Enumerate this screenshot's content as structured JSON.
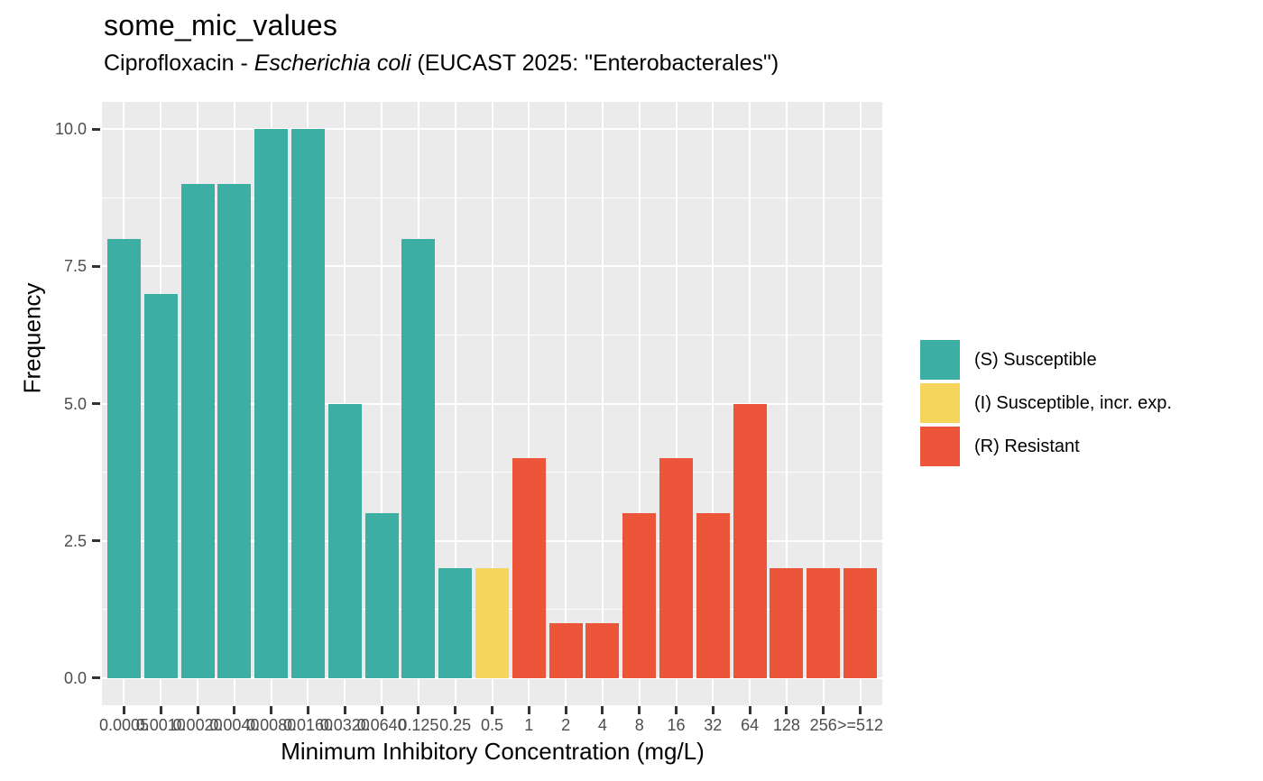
{
  "title": "some_mic_values",
  "subtitle": {
    "part1": "Ciprofloxacin - ",
    "part2_italic": "Escherichia coli",
    "part3": " (EUCAST 2025: \"Enterobacterales\")"
  },
  "axes": {
    "x_title": "Minimum Inhibitory Concentration (mg/L)",
    "y_title": "Frequency",
    "y_tick_labels": [
      "0.0",
      "2.5",
      "5.0",
      "7.5",
      "10.0"
    ],
    "y_tick_values": [
      0,
      2.5,
      5,
      7.5,
      10
    ],
    "y_minor_values": [
      1.25,
      3.75,
      6.25,
      8.75
    ]
  },
  "legend": {
    "items": [
      {
        "key": "S",
        "label": "(S) Susceptible",
        "color": "#3CAEA3"
      },
      {
        "key": "I",
        "label": "(I) Susceptible, incr. exp.",
        "color": "#F6D55C"
      },
      {
        "key": "R",
        "label": "(R) Resistant",
        "color": "#ED553B"
      }
    ]
  },
  "colors": {
    "panel_background": "#EBEBEB",
    "gridline": "#FFFFFF",
    "tick_label": "#4D4D4D",
    "tick_mark": "#333333",
    "text": "#000000",
    "S": "#3CAEA3",
    "I": "#F6D55C",
    "R": "#ED553B"
  },
  "chart_data": {
    "type": "bar",
    "title": "some_mic_values",
    "subtitle": "Ciprofloxacin - Escherichia coli (EUCAST 2025: \"Enterobacterales\")",
    "xlabel": "Minimum Inhibitory Concentration (mg/L)",
    "ylabel": "Frequency",
    "ylim": [
      0,
      10
    ],
    "y_major_breaks": [
      0,
      2.5,
      5,
      7.5,
      10
    ],
    "grid": true,
    "legend_position": "right",
    "categories": [
      "0.0005",
      "0.0010",
      "0.0020",
      "0.0040",
      "0.0080",
      "0.0160",
      "0.0320",
      "0.0640",
      "0.125",
      "0.25",
      "0.5",
      "1",
      "2",
      "4",
      "8",
      "16",
      "32",
      "64",
      "128",
      "256",
      ">=512"
    ],
    "values": [
      8,
      7,
      9,
      9,
      10,
      10,
      5,
      3,
      8,
      2,
      2,
      4,
      1,
      1,
      3,
      4,
      3,
      5,
      2,
      2,
      2
    ],
    "sir": [
      "S",
      "S",
      "S",
      "S",
      "S",
      "S",
      "S",
      "S",
      "S",
      "S",
      "I",
      "R",
      "R",
      "R",
      "R",
      "R",
      "R",
      "R",
      "R",
      "R",
      "R"
    ]
  }
}
